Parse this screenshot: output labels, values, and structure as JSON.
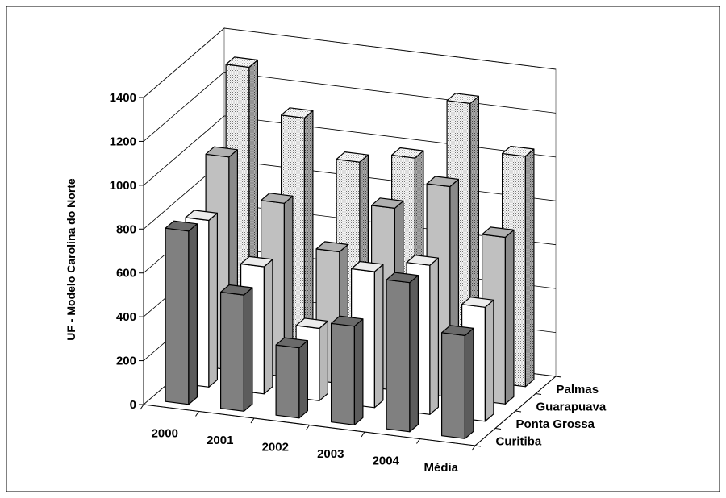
{
  "chart_data": {
    "type": "bar",
    "subtype": "3d-clustered",
    "title": "",
    "ylabel": "UF - Modelo Carolina do Norte",
    "xlabel": "",
    "ylim": [
      0,
      1400
    ],
    "yticks": [
      0,
      200,
      400,
      600,
      800,
      1000,
      1200,
      1400
    ],
    "grid": true,
    "categories": [
      "2000",
      "2001",
      "2002",
      "2003",
      "2004",
      "Média"
    ],
    "series": [
      {
        "name": "Palmas",
        "color": "#f2f2f2",
        "pattern": "dotted",
        "values": [
          1300,
          1100,
          930,
          980,
          1260,
          1050
        ]
      },
      {
        "name": "Guarapuava",
        "color": "#c0c0c0",
        "values": [
          970,
          790,
          600,
          830,
          960,
          760
        ]
      },
      {
        "name": "Ponta Grossa",
        "color": "#ffffff",
        "values": [
          760,
          580,
          330,
          620,
          680,
          520
        ]
      },
      {
        "name": "Curitiba",
        "color": "#808080",
        "values": [
          790,
          530,
          320,
          450,
          680,
          470
        ]
      }
    ]
  }
}
